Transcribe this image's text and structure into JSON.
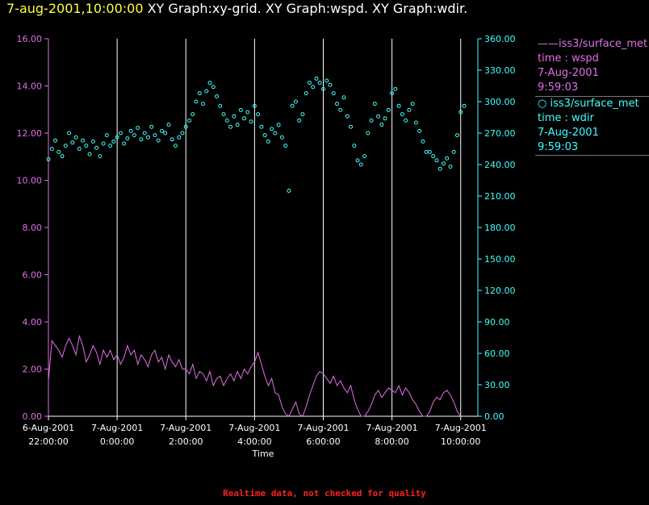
{
  "header": {
    "timestamp": "7-aug-2001,10:00:00",
    "titles": "XY Graph:xy-grid.  XY Graph:wspd.  XY Graph:wdir."
  },
  "footer": "Realtime data, not checked for quality",
  "legend": [
    {
      "marker": "line",
      "lines": [
        "iss3/surface_met",
        "time : wspd",
        "7-Aug-2001",
        "9:59:03"
      ]
    },
    {
      "marker": "circle",
      "lines": [
        "iss3/surface_met",
        "time : wdir",
        "7-Aug-2001",
        "9:59:03"
      ]
    }
  ],
  "colors": {
    "wspd": "#e070e6",
    "wdir": "#40ffff",
    "grid": "#ffffff",
    "timestamp": "#ffff3c",
    "footer": "#ff2020"
  },
  "chart_data": {
    "type": "line",
    "xlabel": "Time",
    "x_range_hours": [
      -2,
      10.5
    ],
    "x_ticks": [
      {
        "t": -2,
        "lines": [
          "6-Aug-2001",
          "22:00:00"
        ]
      },
      {
        "t": 0,
        "lines": [
          "7-Aug-2001",
          "0:00:00"
        ]
      },
      {
        "t": 2,
        "lines": [
          "7-Aug-2001",
          "2:00:00"
        ]
      },
      {
        "t": 4,
        "lines": [
          "7-Aug-2001",
          "4:00:00"
        ]
      },
      {
        "t": 6,
        "lines": [
          "7-Aug-2001",
          "6:00:00"
        ]
      },
      {
        "t": 8,
        "lines": [
          "7-Aug-2001",
          "8:00:00"
        ]
      },
      {
        "t": 10,
        "lines": [
          "7-Aug-2001",
          "10:00:00"
        ]
      }
    ],
    "grid_vertical_hours": [
      0,
      2,
      4,
      6,
      8,
      10
    ],
    "y_left": {
      "range": [
        0,
        16
      ],
      "ticks": [
        "0.00",
        "2.00",
        "4.00",
        "6.00",
        "8.00",
        "10.00",
        "12.00",
        "14.00",
        "16.00"
      ]
    },
    "y_right": {
      "range": [
        0,
        360
      ],
      "ticks": [
        "0.00",
        "30.00",
        "60.00",
        "90.00",
        "120.00",
        "150.00",
        "180.00",
        "210.00",
        "240.00",
        "270.00",
        "300.00",
        "330.00",
        "360.00"
      ]
    },
    "series": [
      {
        "name": "iss3/surface_met",
        "variable": "wspd",
        "axis": "left",
        "style": "line",
        "points": [
          [
            -2.0,
            1.5
          ],
          [
            -1.9,
            3.2
          ],
          [
            -1.8,
            3.0
          ],
          [
            -1.7,
            2.8
          ],
          [
            -1.6,
            2.5
          ],
          [
            -1.5,
            3.0
          ],
          [
            -1.4,
            3.3
          ],
          [
            -1.3,
            3.0
          ],
          [
            -1.2,
            2.6
          ],
          [
            -1.1,
            3.4
          ],
          [
            -1.0,
            3.0
          ],
          [
            -0.9,
            2.3
          ],
          [
            -0.8,
            2.6
          ],
          [
            -0.7,
            3.0
          ],
          [
            -0.6,
            2.7
          ],
          [
            -0.5,
            2.2
          ],
          [
            -0.4,
            2.8
          ],
          [
            -0.3,
            2.5
          ],
          [
            -0.2,
            2.8
          ],
          [
            -0.1,
            2.4
          ],
          [
            0.0,
            2.6
          ],
          [
            0.1,
            2.2
          ],
          [
            0.2,
            2.5
          ],
          [
            0.3,
            3.0
          ],
          [
            0.4,
            2.6
          ],
          [
            0.5,
            2.8
          ],
          [
            0.6,
            2.2
          ],
          [
            0.7,
            2.6
          ],
          [
            0.8,
            2.4
          ],
          [
            0.9,
            2.1
          ],
          [
            1.0,
            2.6
          ],
          [
            1.1,
            2.8
          ],
          [
            1.2,
            2.3
          ],
          [
            1.3,
            2.5
          ],
          [
            1.4,
            2.0
          ],
          [
            1.5,
            2.6
          ],
          [
            1.6,
            2.3
          ],
          [
            1.7,
            2.1
          ],
          [
            1.8,
            2.4
          ],
          [
            1.9,
            2.0
          ],
          [
            2.0,
            2.0
          ],
          [
            2.1,
            1.8
          ],
          [
            2.2,
            2.2
          ],
          [
            2.3,
            1.6
          ],
          [
            2.4,
            1.9
          ],
          [
            2.5,
            1.8
          ],
          [
            2.6,
            1.5
          ],
          [
            2.7,
            1.9
          ],
          [
            2.8,
            1.3
          ],
          [
            2.9,
            1.6
          ],
          [
            3.0,
            1.7
          ],
          [
            3.1,
            1.3
          ],
          [
            3.2,
            1.6
          ],
          [
            3.3,
            1.8
          ],
          [
            3.4,
            1.5
          ],
          [
            3.5,
            1.9
          ],
          [
            3.6,
            1.6
          ],
          [
            3.7,
            2.0
          ],
          [
            3.8,
            1.8
          ],
          [
            3.9,
            2.1
          ],
          [
            4.0,
            2.3
          ],
          [
            4.1,
            2.7
          ],
          [
            4.2,
            2.2
          ],
          [
            4.3,
            1.7
          ],
          [
            4.4,
            1.3
          ],
          [
            4.5,
            1.6
          ],
          [
            4.6,
            1.0
          ],
          [
            4.7,
            0.9
          ],
          [
            4.8,
            0.4
          ],
          [
            4.9,
            0.1
          ],
          [
            5.0,
            0.0
          ],
          [
            5.1,
            0.3
          ],
          [
            5.2,
            0.6
          ],
          [
            5.3,
            0.1
          ],
          [
            5.4,
            0.0
          ],
          [
            5.5,
            0.4
          ],
          [
            5.6,
            0.9
          ],
          [
            5.7,
            1.3
          ],
          [
            5.8,
            1.7
          ],
          [
            5.9,
            1.9
          ],
          [
            6.0,
            1.8
          ],
          [
            6.1,
            1.6
          ],
          [
            6.2,
            1.4
          ],
          [
            6.3,
            1.7
          ],
          [
            6.4,
            1.3
          ],
          [
            6.5,
            1.5
          ],
          [
            6.6,
            1.2
          ],
          [
            6.7,
            1.0
          ],
          [
            6.8,
            1.3
          ],
          [
            6.9,
            0.7
          ],
          [
            7.0,
            0.3
          ],
          [
            7.1,
            0.0
          ],
          [
            7.2,
            0.0
          ],
          [
            7.3,
            0.2
          ],
          [
            7.4,
            0.5
          ],
          [
            7.5,
            0.9
          ],
          [
            7.6,
            1.1
          ],
          [
            7.7,
            0.8
          ],
          [
            7.8,
            1.0
          ],
          [
            7.9,
            1.2
          ],
          [
            8.0,
            1.1
          ],
          [
            8.1,
            1.0
          ],
          [
            8.2,
            1.3
          ],
          [
            8.3,
            0.9
          ],
          [
            8.4,
            1.2
          ],
          [
            8.5,
            1.0
          ],
          [
            8.6,
            0.7
          ],
          [
            8.7,
            0.5
          ],
          [
            8.8,
            0.2
          ],
          [
            8.9,
            0.0
          ],
          [
            9.0,
            0.0
          ],
          [
            9.1,
            0.2
          ],
          [
            9.2,
            0.6
          ],
          [
            9.3,
            0.8
          ],
          [
            9.4,
            0.7
          ],
          [
            9.5,
            1.0
          ],
          [
            9.6,
            1.1
          ],
          [
            9.7,
            0.9
          ],
          [
            9.8,
            0.6
          ],
          [
            9.9,
            0.2
          ],
          [
            10.0,
            0.0
          ]
        ]
      },
      {
        "name": "iss3/surface_met",
        "variable": "wdir",
        "axis": "right",
        "style": "circles",
        "points": [
          [
            -2.0,
            245
          ],
          [
            -1.9,
            255
          ],
          [
            -1.8,
            263
          ],
          [
            -1.7,
            252
          ],
          [
            -1.6,
            248
          ],
          [
            -1.5,
            258
          ],
          [
            -1.4,
            270
          ],
          [
            -1.3,
            261
          ],
          [
            -1.2,
            266
          ],
          [
            -1.1,
            255
          ],
          [
            -1.0,
            263
          ],
          [
            -0.9,
            258
          ],
          [
            -0.8,
            250
          ],
          [
            -0.7,
            262
          ],
          [
            -0.6,
            256
          ],
          [
            -0.5,
            248
          ],
          [
            -0.4,
            260
          ],
          [
            -0.3,
            268
          ],
          [
            -0.2,
            258
          ],
          [
            -0.1,
            262
          ],
          [
            0.0,
            266
          ],
          [
            0.1,
            270
          ],
          [
            0.2,
            260
          ],
          [
            0.3,
            265
          ],
          [
            0.4,
            272
          ],
          [
            0.5,
            268
          ],
          [
            0.6,
            275
          ],
          [
            0.7,
            264
          ],
          [
            0.8,
            270
          ],
          [
            0.9,
            266
          ],
          [
            1.0,
            276
          ],
          [
            1.1,
            268
          ],
          [
            1.2,
            263
          ],
          [
            1.3,
            272
          ],
          [
            1.4,
            270
          ],
          [
            1.5,
            278
          ],
          [
            1.6,
            264
          ],
          [
            1.7,
            258
          ],
          [
            1.8,
            266
          ],
          [
            1.9,
            270
          ],
          [
            2.0,
            276
          ],
          [
            2.1,
            282
          ],
          [
            2.2,
            288
          ],
          [
            2.3,
            300
          ],
          [
            2.4,
            308
          ],
          [
            2.5,
            298
          ],
          [
            2.6,
            310
          ],
          [
            2.7,
            318
          ],
          [
            2.8,
            314
          ],
          [
            2.9,
            305
          ],
          [
            3.0,
            296
          ],
          [
            3.1,
            288
          ],
          [
            3.2,
            282
          ],
          [
            3.3,
            276
          ],
          [
            3.4,
            286
          ],
          [
            3.5,
            278
          ],
          [
            3.6,
            292
          ],
          [
            3.7,
            284
          ],
          [
            3.8,
            290
          ],
          [
            3.9,
            281
          ],
          [
            4.0,
            296
          ],
          [
            4.1,
            288
          ],
          [
            4.2,
            276
          ],
          [
            4.3,
            268
          ],
          [
            4.4,
            262
          ],
          [
            4.5,
            274
          ],
          [
            4.6,
            270
          ],
          [
            4.7,
            278
          ],
          [
            4.8,
            266
          ],
          [
            4.9,
            258
          ],
          [
            5.0,
            215
          ],
          [
            5.1,
            296
          ],
          [
            5.2,
            300
          ],
          [
            5.3,
            282
          ],
          [
            5.4,
            288
          ],
          [
            5.5,
            308
          ],
          [
            5.6,
            318
          ],
          [
            5.7,
            314
          ],
          [
            5.8,
            322
          ],
          [
            5.9,
            318
          ],
          [
            6.0,
            312
          ],
          [
            6.1,
            320
          ],
          [
            6.2,
            316
          ],
          [
            6.3,
            308
          ],
          [
            6.4,
            298
          ],
          [
            6.5,
            292
          ],
          [
            6.6,
            304
          ],
          [
            6.7,
            286
          ],
          [
            6.8,
            276
          ],
          [
            6.9,
            258
          ],
          [
            7.0,
            244
          ],
          [
            7.1,
            240
          ],
          [
            7.2,
            248
          ],
          [
            7.3,
            270
          ],
          [
            7.4,
            282
          ],
          [
            7.5,
            298
          ],
          [
            7.6,
            286
          ],
          [
            7.7,
            278
          ],
          [
            7.8,
            284
          ],
          [
            7.9,
            292
          ],
          [
            8.0,
            308
          ],
          [
            8.1,
            312
          ],
          [
            8.2,
            296
          ],
          [
            8.3,
            288
          ],
          [
            8.4,
            282
          ],
          [
            8.5,
            292
          ],
          [
            8.6,
            298
          ],
          [
            8.7,
            280
          ],
          [
            8.8,
            272
          ],
          [
            8.9,
            262
          ],
          [
            9.0,
            252
          ],
          [
            9.1,
            252
          ],
          [
            9.2,
            248
          ],
          [
            9.3,
            244
          ],
          [
            9.4,
            236
          ],
          [
            9.5,
            241
          ],
          [
            9.6,
            246
          ],
          [
            9.7,
            238
          ],
          [
            9.8,
            252
          ],
          [
            9.9,
            268
          ],
          [
            10.0,
            290
          ],
          [
            10.1,
            296
          ]
        ]
      }
    ]
  }
}
